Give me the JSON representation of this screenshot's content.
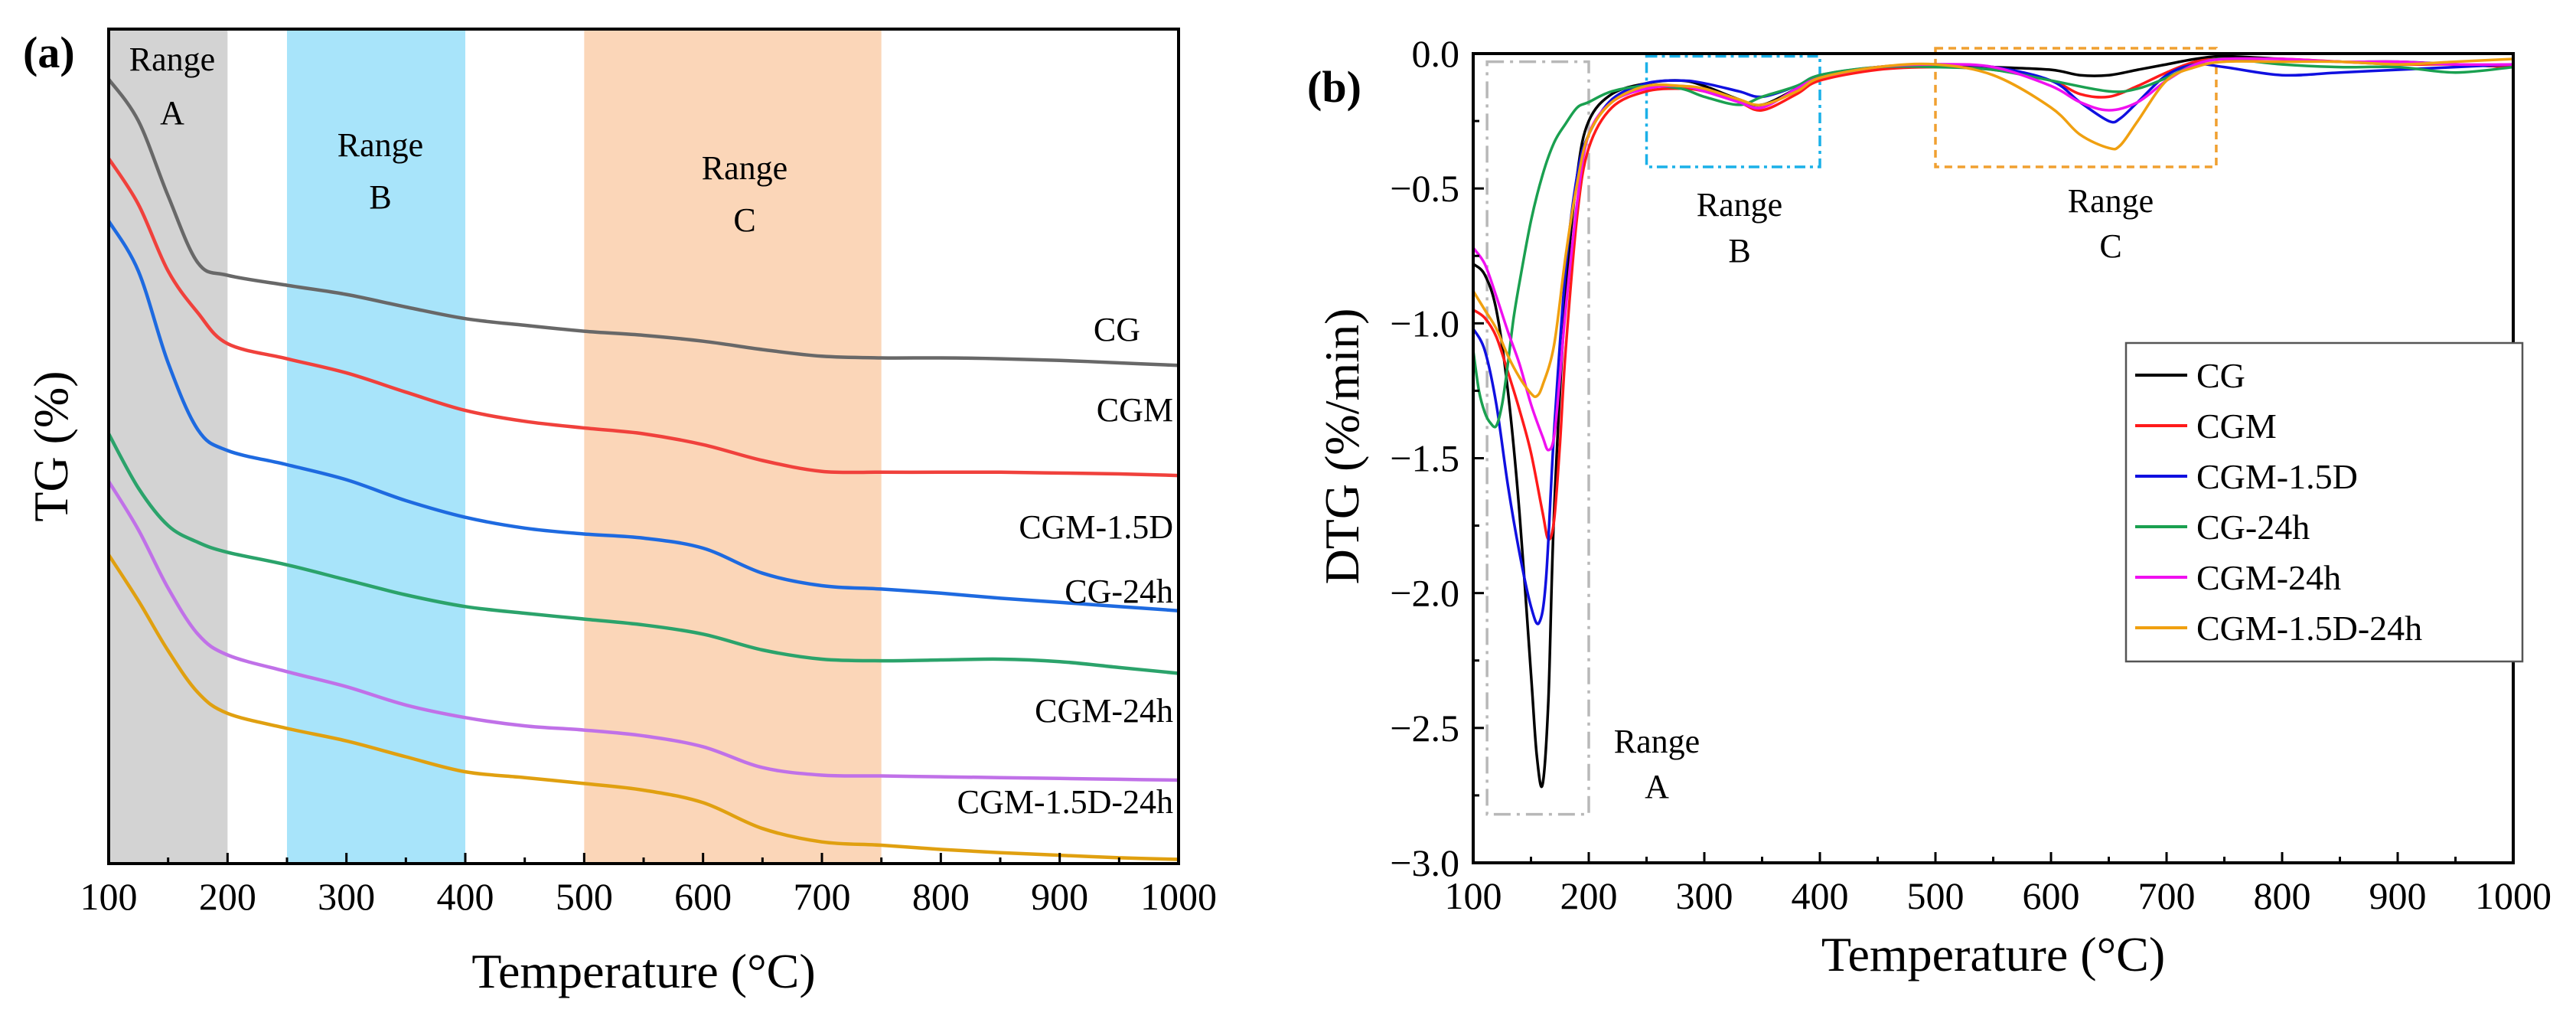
{
  "colors": {
    "gray_range": "#d3d3d3",
    "blue_range": "#a8e4fa",
    "orange_range": "#fbd6b8",
    "box_a": "#b8b8b8",
    "box_b": "#1ab0e8",
    "box_c": "#f0a030"
  },
  "chart_data": [
    {
      "id": "a",
      "panel_label": "(a)",
      "type": "line",
      "xlabel": "Temperature (°C)",
      "ylabel": "TG (%)",
      "xlim": [
        100,
        1000
      ],
      "ylim": [
        0,
        100
      ],
      "y_ticks_shown": false,
      "xticks": [
        "100",
        "200",
        "300",
        "400",
        "500",
        "600",
        "700",
        "800",
        "900",
        "1000"
      ],
      "ranges": [
        {
          "name": "A",
          "label_line1": "Range",
          "label_line2": "A",
          "from": 100,
          "to": 200,
          "color": "#d3d3d3"
        },
        {
          "name": "B",
          "label_line1": "Range",
          "label_line2": "B",
          "from": 250,
          "to": 400,
          "color": "#a8e4fa"
        },
        {
          "name": "C",
          "label_line1": "Range",
          "label_line2": "C",
          "from": 500,
          "to": 750,
          "color": "#fbd6b8"
        }
      ],
      "series": [
        {
          "name": "CG",
          "color": "#686868",
          "x": [
            100,
            125,
            150,
            175,
            200,
            250,
            300,
            350,
            400,
            450,
            500,
            550,
            600,
            650,
            700,
            750,
            800,
            850,
            900,
            950,
            1000
          ],
          "y": [
            94,
            89,
            80,
            72,
            70.5,
            69.3,
            68.2,
            66.7,
            65.3,
            64.5,
            63.8,
            63.3,
            62.6,
            61.6,
            60.8,
            60.6,
            60.6,
            60.5,
            60.3,
            60,
            59.7
          ]
        },
        {
          "name": "CGM",
          "color": "#f0413c",
          "x": [
            100,
            125,
            150,
            175,
            200,
            250,
            300,
            350,
            400,
            450,
            500,
            550,
            600,
            650,
            700,
            750,
            800,
            850,
            900,
            950,
            1000
          ],
          "y": [
            84.5,
            79,
            71,
            66,
            62.3,
            60.5,
            58.8,
            56.5,
            54.3,
            53,
            52.2,
            51.5,
            50.2,
            48.3,
            47,
            46.9,
            46.9,
            46.9,
            46.8,
            46.7,
            46.5
          ]
        },
        {
          "name": "CGM-1.5D",
          "color": "#1e6ae0",
          "x": [
            100,
            125,
            150,
            175,
            200,
            250,
            300,
            350,
            400,
            450,
            500,
            550,
            600,
            650,
            700,
            750,
            800,
            850,
            900,
            950,
            1000
          ],
          "y": [
            77,
            71,
            60,
            52,
            49.5,
            47.8,
            46,
            43.5,
            41.5,
            40.2,
            39.5,
            39,
            37.8,
            34.8,
            33.3,
            32.9,
            32.4,
            31.8,
            31.3,
            30.8,
            30.3
          ]
        },
        {
          "name": "CG-24h",
          "color": "#2ba36b",
          "x": [
            100,
            125,
            150,
            175,
            200,
            250,
            300,
            350,
            400,
            450,
            500,
            550,
            600,
            650,
            700,
            750,
            800,
            850,
            900,
            950,
            1000
          ],
          "y": [
            51.5,
            45,
            40.5,
            38.5,
            37.3,
            35.8,
            34,
            32.2,
            30.8,
            30,
            29.3,
            28.6,
            27.5,
            25.6,
            24.5,
            24.3,
            24.4,
            24.5,
            24.2,
            23.5,
            22.8
          ]
        },
        {
          "name": "CGM-24h",
          "color": "#c071e8",
          "x": [
            100,
            125,
            150,
            175,
            200,
            250,
            300,
            350,
            400,
            450,
            500,
            550,
            600,
            650,
            700,
            750,
            800,
            850,
            900,
            950,
            1000
          ],
          "y": [
            45.8,
            40,
            33,
            27.5,
            25,
            23,
            21.2,
            19,
            17.5,
            16.5,
            16,
            15.3,
            14,
            11.5,
            10.6,
            10.5,
            10.4,
            10.3,
            10.2,
            10.1,
            10
          ]
        },
        {
          "name": "CGM-1.5D-24h",
          "color": "#e0a010",
          "x": [
            100,
            125,
            150,
            175,
            200,
            250,
            300,
            350,
            400,
            450,
            500,
            550,
            600,
            650,
            700,
            750,
            800,
            850,
            900,
            950,
            1000
          ],
          "y": [
            37,
            31.5,
            25.5,
            20.5,
            18,
            16.2,
            14.7,
            12.8,
            11,
            10.3,
            9.6,
            8.8,
            7.3,
            4.2,
            2.6,
            2.2,
            1.7,
            1.3,
            1,
            0.7,
            0.5
          ]
        }
      ],
      "end_labels": [
        "CG",
        "CGM",
        "CGM-1.5D",
        "CG-24h",
        "CGM-24h",
        "CGM-1.5D-24h"
      ]
    },
    {
      "id": "b",
      "panel_label": "(b)",
      "type": "line",
      "xlabel": "Temperature (°C)",
      "ylabel": "DTG (%/min)",
      "xlim": [
        100,
        1000
      ],
      "ylim": [
        -3.0,
        0.0
      ],
      "xticks": [
        "100",
        "200",
        "300",
        "400",
        "500",
        "600",
        "700",
        "800",
        "900",
        "1000"
      ],
      "yticks": [
        {
          "v": 0.0,
          "label": "0.0"
        },
        {
          "v": -0.5,
          "label": "−0.5"
        },
        {
          "v": -1.0,
          "label": "−1.0"
        },
        {
          "v": -1.5,
          "label": "−1.5"
        },
        {
          "v": -2.0,
          "label": "−2.0"
        },
        {
          "v": -2.5,
          "label": "−2.5"
        },
        {
          "v": -3.0,
          "label": "−3.0"
        }
      ],
      "range_boxes": [
        {
          "name": "A",
          "label_line1": "Range",
          "label_line2": "A",
          "x0": 112,
          "x1": 200,
          "y0": -2.82,
          "y1": -0.03,
          "color": "#b8b8b8",
          "dash": "22,8,4,8"
        },
        {
          "name": "B",
          "label_line1": "Range",
          "label_line2": "B",
          "x0": 250,
          "x1": 400,
          "y0": -0.42,
          "y1": -0.01,
          "color": "#1ab0e8",
          "dash": "14,6,4,6"
        },
        {
          "name": "C",
          "label_line1": "Range",
          "label_line2": "C",
          "x0": 500,
          "x1": 743,
          "y0": -0.42,
          "y1": 0.02,
          "color": "#f0a030",
          "dash": "10,7"
        }
      ],
      "legend_position": "right-middle",
      "series": [
        {
          "name": "CG",
          "color": "#000000",
          "x": [
            100,
            110,
            120,
            130,
            140,
            150,
            155,
            160,
            165,
            170,
            180,
            190,
            200,
            220,
            250,
            280,
            300,
            330,
            350,
            380,
            400,
            450,
            500,
            550,
            600,
            625,
            650,
            675,
            700,
            725,
            750,
            800,
            850,
            900,
            950,
            1000
          ],
          "y": [
            -0.78,
            -0.82,
            -0.95,
            -1.25,
            -1.7,
            -2.3,
            -2.6,
            -2.71,
            -2.4,
            -1.7,
            -0.9,
            -0.45,
            -0.25,
            -0.15,
            -0.11,
            -0.1,
            -0.12,
            -0.17,
            -0.19,
            -0.13,
            -0.09,
            -0.05,
            -0.04,
            -0.05,
            -0.06,
            -0.08,
            -0.08,
            -0.06,
            -0.04,
            -0.02,
            -0.01,
            -0.02,
            -0.03,
            -0.03,
            -0.04,
            -0.05
          ]
        },
        {
          "name": "CGM",
          "color": "#ff1a1a",
          "x": [
            100,
            110,
            120,
            130,
            140,
            150,
            160,
            165,
            170,
            175,
            180,
            190,
            200,
            220,
            250,
            280,
            300,
            330,
            350,
            380,
            400,
            450,
            500,
            550,
            600,
            625,
            650,
            675,
            700,
            725,
            750,
            800,
            850,
            900,
            950,
            1000
          ],
          "y": [
            -0.95,
            -0.98,
            -1.05,
            -1.18,
            -1.32,
            -1.48,
            -1.7,
            -1.8,
            -1.73,
            -1.45,
            -1.1,
            -0.6,
            -0.35,
            -0.2,
            -0.14,
            -0.13,
            -0.14,
            -0.18,
            -0.21,
            -0.15,
            -0.1,
            -0.06,
            -0.05,
            -0.06,
            -0.1,
            -0.15,
            -0.16,
            -0.12,
            -0.07,
            -0.03,
            -0.02,
            -0.02,
            -0.03,
            -0.04,
            -0.04,
            -0.05
          ]
        },
        {
          "name": "CGM-1.5D",
          "color": "#1010e0",
          "x": [
            100,
            110,
            120,
            130,
            140,
            150,
            157,
            163,
            170,
            180,
            190,
            200,
            220,
            250,
            280,
            300,
            330,
            350,
            380,
            400,
            450,
            500,
            550,
            600,
            625,
            650,
            660,
            675,
            700,
            725,
            750,
            800,
            850,
            900,
            950,
            1000
          ],
          "y": [
            -1.02,
            -1.1,
            -1.3,
            -1.6,
            -1.85,
            -2.05,
            -2.11,
            -1.95,
            -1.4,
            -0.8,
            -0.45,
            -0.3,
            -0.17,
            -0.11,
            -0.1,
            -0.11,
            -0.14,
            -0.16,
            -0.12,
            -0.08,
            -0.05,
            -0.04,
            -0.05,
            -0.1,
            -0.18,
            -0.25,
            -0.24,
            -0.18,
            -0.08,
            -0.04,
            -0.05,
            -0.08,
            -0.07,
            -0.06,
            -0.05,
            -0.04
          ]
        },
        {
          "name": "CG-24h",
          "color": "#1aa050",
          "x": [
            100,
            105,
            110,
            115,
            120,
            125,
            130,
            135,
            140,
            150,
            160,
            170,
            180,
            190,
            200,
            220,
            250,
            280,
            300,
            330,
            350,
            380,
            400,
            450,
            500,
            550,
            600,
            650,
            675,
            700,
            725,
            750,
            800,
            850,
            900,
            950,
            1000
          ],
          "y": [
            -1.1,
            -1.25,
            -1.33,
            -1.37,
            -1.38,
            -1.3,
            -1.15,
            -0.98,
            -0.85,
            -0.62,
            -0.45,
            -0.33,
            -0.26,
            -0.2,
            -0.18,
            -0.14,
            -0.12,
            -0.13,
            -0.16,
            -0.19,
            -0.16,
            -0.12,
            -0.08,
            -0.05,
            -0.05,
            -0.06,
            -0.1,
            -0.14,
            -0.13,
            -0.09,
            -0.04,
            -0.02,
            -0.04,
            -0.05,
            -0.05,
            -0.07,
            -0.05
          ]
        },
        {
          "name": "CGM-24h",
          "color": "#f010f0",
          "x": [
            100,
            110,
            120,
            130,
            140,
            150,
            160,
            165,
            170,
            175,
            180,
            190,
            200,
            220,
            250,
            280,
            300,
            330,
            350,
            380,
            400,
            450,
            500,
            550,
            600,
            625,
            650,
            675,
            700,
            725,
            750,
            800,
            850,
            900,
            950,
            1000
          ],
          "y": [
            -0.72,
            -0.78,
            -0.9,
            -1.03,
            -1.15,
            -1.3,
            -1.42,
            -1.47,
            -1.42,
            -1.2,
            -0.95,
            -0.55,
            -0.3,
            -0.18,
            -0.13,
            -0.12,
            -0.14,
            -0.18,
            -0.2,
            -0.13,
            -0.09,
            -0.05,
            -0.04,
            -0.05,
            -0.12,
            -0.18,
            -0.21,
            -0.18,
            -0.1,
            -0.04,
            -0.02,
            -0.02,
            -0.03,
            -0.03,
            -0.04,
            -0.04
          ]
        },
        {
          "name": "CGM-1.5D-24h",
          "color": "#f0a010",
          "x": [
            100,
            110,
            120,
            130,
            140,
            150,
            155,
            160,
            170,
            180,
            190,
            200,
            220,
            250,
            280,
            300,
            330,
            350,
            380,
            400,
            450,
            500,
            550,
            600,
            625,
            650,
            660,
            675,
            700,
            725,
            750,
            800,
            850,
            900,
            950,
            1000
          ],
          "y": [
            -0.88,
            -0.95,
            -1.02,
            -1.12,
            -1.2,
            -1.26,
            -1.27,
            -1.23,
            -1.08,
            -0.75,
            -0.48,
            -0.3,
            -0.18,
            -0.12,
            -0.12,
            -0.13,
            -0.17,
            -0.19,
            -0.14,
            -0.09,
            -0.05,
            -0.04,
            -0.08,
            -0.2,
            -0.3,
            -0.35,
            -0.34,
            -0.25,
            -0.1,
            -0.05,
            -0.03,
            -0.03,
            -0.03,
            -0.04,
            -0.03,
            -0.02
          ]
        }
      ]
    }
  ]
}
